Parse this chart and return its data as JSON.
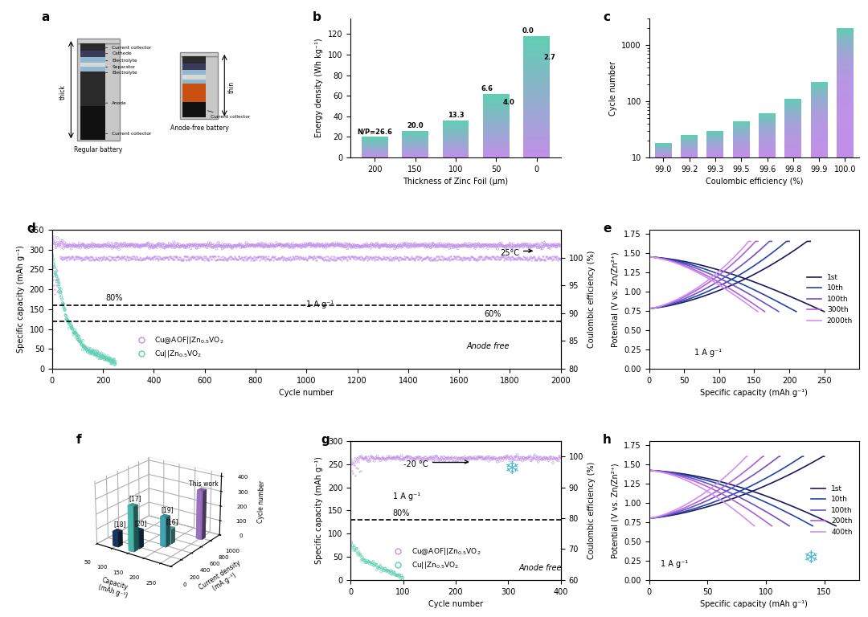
{
  "panel_b": {
    "x_labels": [
      "200",
      "150",
      "100",
      "50",
      "0"
    ],
    "heights": [
      20,
      26,
      36,
      62,
      118
    ],
    "annotations_left": [
      "N/P=26.6",
      "20.0",
      "13.3",
      "6.6",
      "0.0"
    ],
    "annotations_right": [
      "",
      "",
      "",
      "4.0",
      "2.7"
    ],
    "ylabel": "Energy density (Wh kg⁻¹)",
    "xlabel": "Thickness of Zinc Foil (μm)",
    "ylim": [
      0,
      135
    ]
  },
  "panel_c": {
    "x_labels": [
      "99.0",
      "99.2",
      "99.3",
      "99.5",
      "99.6",
      "99.8",
      "99.9",
      "100.0"
    ],
    "heights": [
      18,
      25,
      30,
      44,
      62,
      110,
      220,
      2000
    ],
    "ylabel": "Cycle number",
    "xlabel": "Coulombic efficiency (%)",
    "ylim": [
      10,
      3000
    ]
  },
  "panel_d": {
    "ylabel_left": "Specific capacity (mAh g⁻¹)",
    "ylabel_right": "Coulombic efficiency (%)",
    "xlabel": "Cycle number",
    "xlim": [
      0,
      2000
    ],
    "ylim_left": [
      0,
      350
    ],
    "ylim_right": [
      80,
      105
    ],
    "cap_aof_stable": 310,
    "cap_aof_init_high": 340,
    "cap_cu_init": 280,
    "cap_cu_decay_end": 35,
    "cap_cu_decay_cycles": 200,
    "dashed_80": 160,
    "dashed_60": 120
  },
  "panel_e": {
    "xlabel": "Specific capacity (mAh g⁻¹)",
    "ylabel": "Potential (V vs. Zn/Zn²⁺)",
    "xlim": [
      0,
      300
    ],
    "ylim": [
      0.0,
      1.8
    ],
    "annot": "1 A g⁻¹",
    "legend": [
      "1st",
      "10th",
      "100th",
      "300th",
      "2000th"
    ],
    "max_caps": [
      250,
      210,
      185,
      165,
      155
    ],
    "charge_max_caps": [
      230,
      200,
      175,
      155,
      145
    ],
    "discharge_v_high": [
      1.6,
      1.6,
      1.6,
      1.6,
      1.6
    ],
    "discharge_v_low": [
      0.25,
      0.3,
      0.35,
      0.35,
      0.35
    ],
    "charge_v_low": [
      0.75,
      0.75,
      0.78,
      0.82,
      0.85
    ],
    "charge_v_high": [
      1.6,
      1.6,
      1.6,
      1.6,
      1.6
    ],
    "colors": [
      "#1a1a5e",
      "#2244aa",
      "#7050c8",
      "#b060d8",
      "#d090f0"
    ]
  },
  "panel_f": {
    "refs": [
      {
        "label": "[18]",
        "cap": 100,
        "curr": 100,
        "cycles": 100,
        "color": "#1a3a6a"
      },
      {
        "label": "[17]",
        "cap": 150,
        "curr": 100,
        "cycles": 300,
        "color": "#4ecfc0"
      },
      {
        "label": "[20]",
        "cap": 150,
        "curr": 200,
        "cycles": 120,
        "color": "#1a4a6a"
      },
      {
        "label": "[19]",
        "cap": 200,
        "curr": 400,
        "cycles": 200,
        "color": "#4ab8c8"
      },
      {
        "label": "[16]",
        "cap": 200,
        "curr": 500,
        "cycles": 100,
        "color": "#70d0c8"
      },
      {
        "label": "This work",
        "cap": 250,
        "curr": 800,
        "cycles": 330,
        "color": "#b080d8"
      }
    ],
    "xlabel": "Capacity (mAh g⁻¹)",
    "zlabel": "Cycle number",
    "ylabel": "Current density (mA g⁻¹)"
  },
  "panel_g": {
    "ylabel_left": "Specific capacity (mAh g⁻¹)",
    "ylabel_right": "Coulombic efficiency (%)",
    "xlabel": "Cycle number",
    "xlim": [
      0,
      400
    ],
    "ylim_left": [
      0,
      300
    ],
    "ylim_right": [
      60,
      105
    ],
    "cap_aof_stable": 260,
    "cap_cu_init": 80,
    "cap_cu_decay_cycles": 100,
    "dashed_80": 130
  },
  "panel_h": {
    "xlabel": "Specific capacity (mAh g⁻¹)",
    "ylabel": "Potential (V vs. Zn/Zn²⁺)",
    "xlim": [
      0,
      180
    ],
    "ylim": [
      0.0,
      1.8
    ],
    "annot": "1 A g⁻¹",
    "legend": [
      "1st",
      "10th",
      "100th",
      "200th",
      "400th"
    ],
    "max_caps": [
      160,
      140,
      120,
      105,
      90
    ],
    "charge_max_caps": [
      150,
      132,
      112,
      98,
      84
    ],
    "colors": [
      "#1a1a5e",
      "#2244aa",
      "#7050c8",
      "#b060d8",
      "#d090f0"
    ]
  },
  "teal": "#5ECFB1",
  "purple": "#C090E8",
  "teal_top": "#5ECFB1",
  "purple_bot": "#C090E8"
}
